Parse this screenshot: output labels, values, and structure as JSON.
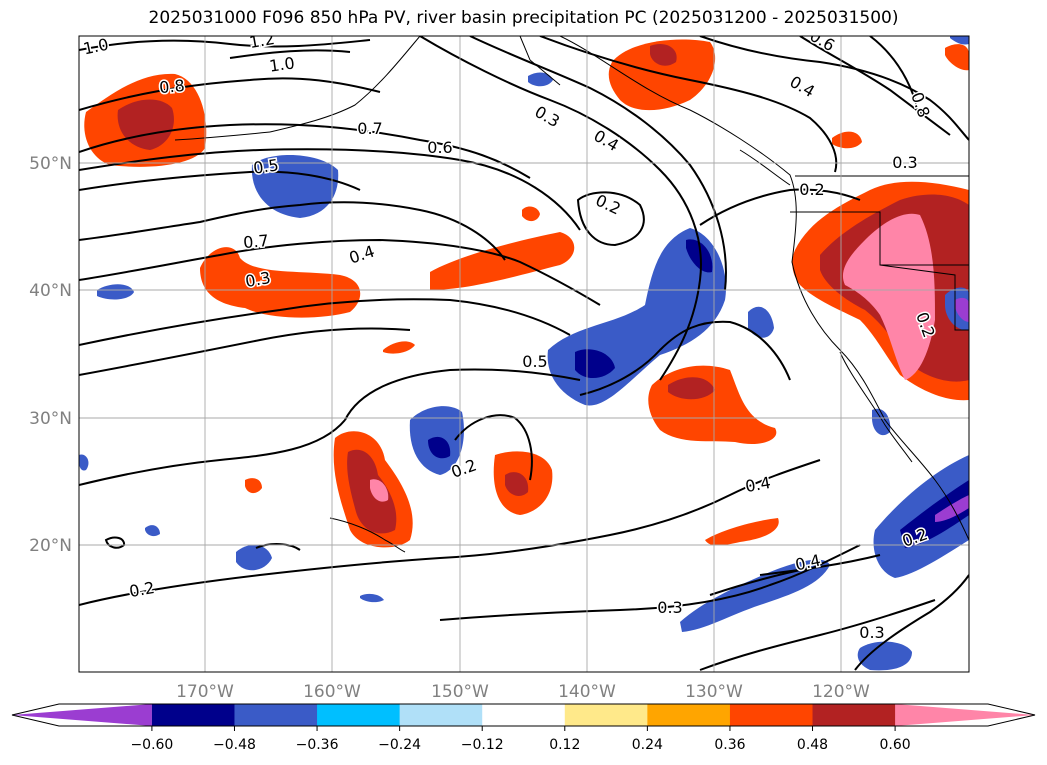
{
  "title": "2025031000 F096 850 hPa PV, river basin precipitation PC (2025031200 - 2025031500)",
  "map": {
    "projection": "PlateCarree",
    "lon_range": [
      -180,
      -110
    ],
    "lat_range": [
      10,
      60
    ],
    "gridlines": true,
    "lat_labels": [
      "50°N",
      "40°N",
      "30°N",
      "20°N"
    ],
    "lon_labels": [
      "170°W",
      "160°W",
      "150°W",
      "140°W",
      "130°W",
      "120°W"
    ],
    "tick_label_color": "#808080"
  },
  "contours": {
    "variable": "850 hPa PV",
    "color": "#000000",
    "labels": [
      "1.0",
      "1.2",
      "1.0",
      "0.8",
      "0.7",
      "0.6",
      "0.5",
      "0.4",
      "0.3",
      "0.7",
      "0.2",
      "0.3",
      "0.4",
      "0.5",
      "0.2",
      "0.4",
      "0.4",
      "0.2",
      "0.3",
      "0.3",
      "0.6",
      "0.4",
      "0.8",
      "0.3",
      "0.2",
      "0.2",
      "0.2"
    ]
  },
  "colorbar": {
    "ticks": [
      "−0.60",
      "−0.48",
      "−0.36",
      "−0.24",
      "−0.12",
      "0.12",
      "0.24",
      "0.36",
      "0.48",
      "0.60"
    ],
    "colors": [
      "#9b3dd1",
      "#00008b",
      "#3a5bc7",
      "#00bfff",
      "#b0e0f8",
      "#ffffff",
      "#ffe98a",
      "#ffa500",
      "#ff4500",
      "#b22222",
      "#ff85a8"
    ],
    "extend": "both"
  }
}
